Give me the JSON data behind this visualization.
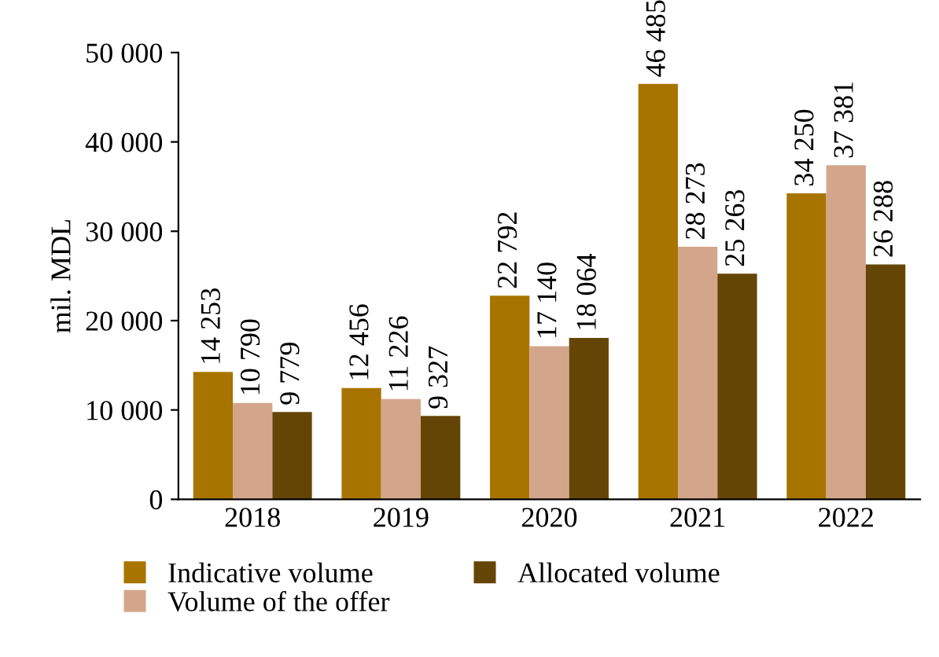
{
  "chart_data": {
    "type": "bar",
    "ylabel": "mil. MDL",
    "categories": [
      "2018",
      "2019",
      "2020",
      "2021",
      "2022"
    ],
    "series": [
      {
        "name": "Indicative volume",
        "color": "#a87400",
        "values": [
          14253,
          12456,
          22792,
          46485,
          34250
        ],
        "value_labels": [
          "14 253",
          "12 456",
          "22 792",
          "46 485",
          "34 250"
        ]
      },
      {
        "name": "Volume of the offer",
        "color": "#d3a68b",
        "values": [
          10790,
          11226,
          17140,
          28273,
          37381
        ],
        "value_labels": [
          "10 790",
          "11 226",
          "17 140",
          "28 273",
          "37 381"
        ]
      },
      {
        "name": "Allocated volume",
        "color": "#654506",
        "values": [
          9779,
          9327,
          18064,
          25263,
          26288
        ],
        "value_labels": [
          "9 779",
          "9 327",
          "18 064",
          "25 263",
          "26 288"
        ]
      }
    ],
    "ylim": [
      0,
      50000
    ],
    "yticks": [
      {
        "value": 0,
        "label": "0"
      },
      {
        "value": 10000,
        "label": "10 000"
      },
      {
        "value": 20000,
        "label": "20 000"
      },
      {
        "value": 30000,
        "label": "30 000"
      },
      {
        "value": 40000,
        "label": "40 000"
      },
      {
        "value": 50000,
        "label": "50 000"
      }
    ],
    "grid": false,
    "legend": "bottom"
  }
}
